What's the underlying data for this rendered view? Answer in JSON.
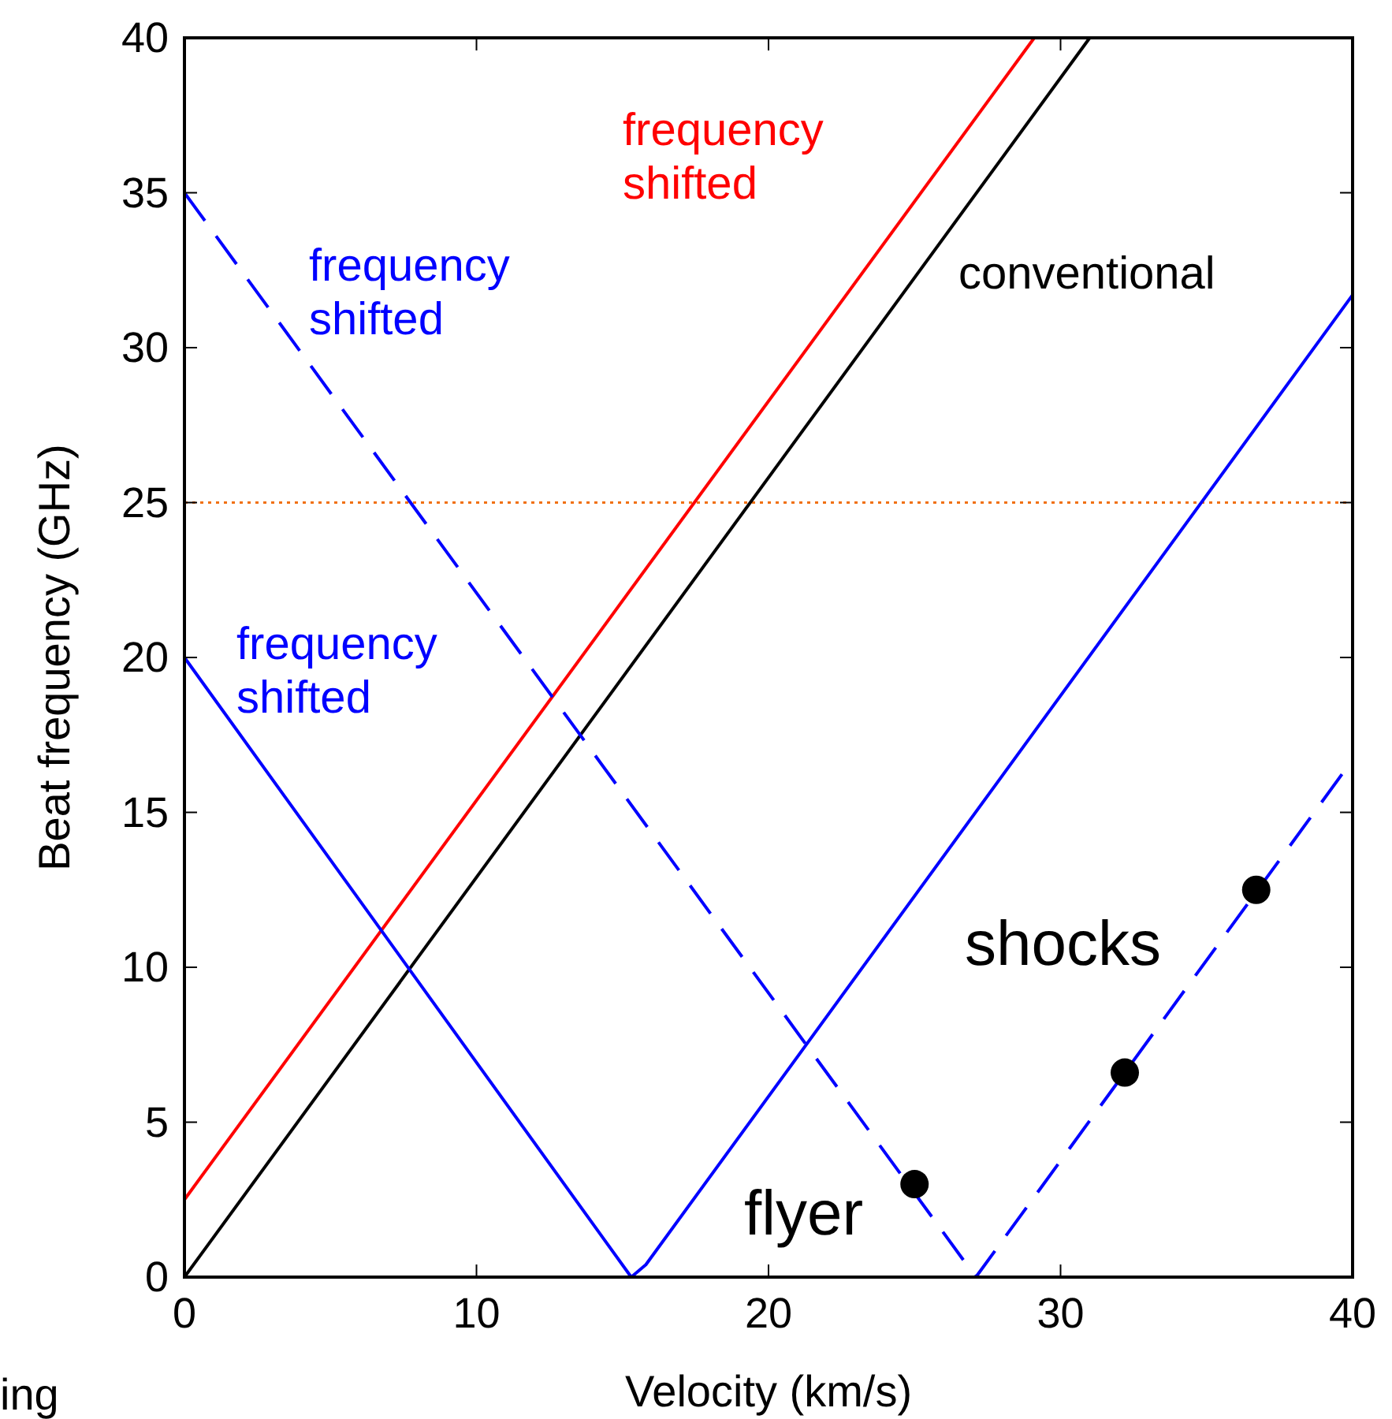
{
  "chart_data": {
    "type": "line",
    "xlabel": "Velocity (km/s)",
    "ylabel": "Beat frequency (GHz)",
    "xlim": [
      0,
      40
    ],
    "ylim": [
      0,
      40
    ],
    "xticks": [
      0,
      10,
      20,
      30,
      40
    ],
    "yticks": [
      0,
      5,
      10,
      15,
      20,
      25,
      30,
      35,
      40
    ],
    "grid": false,
    "series": [
      {
        "name": "frequency shifted",
        "color": "#ff0000",
        "x": [
          0,
          29.1
        ],
        "values": [
          2.5,
          40
        ],
        "line_style": "solid"
      },
      {
        "name": "conventional",
        "color": "#000000",
        "x": [
          0,
          31
        ],
        "values": [
          0,
          40
        ],
        "line_style": "solid"
      },
      {
        "name": "frequency shifted",
        "color": "#0000ff",
        "x": [
          0,
          15.3,
          15.8,
          40
        ],
        "values": [
          20,
          0,
          0.4,
          31.7
        ],
        "line_style": "solid"
      },
      {
        "name": "frequency shifted",
        "color": "#0000ff",
        "x": [
          0,
          27.1,
          40
        ],
        "values": [
          35,
          0,
          16.7
        ],
        "line_style": "dashed"
      },
      {
        "type": "scatter",
        "color": "#000000",
        "x": [
          25,
          32.2,
          36.7
        ],
        "values": [
          3,
          6.6,
          12.5
        ],
        "marker": "circle"
      }
    ],
    "ref_lines": [
      {
        "axis": "y",
        "value": 25,
        "color": "#f07010",
        "line_style": "dotted"
      }
    ],
    "annotations": [
      "shocks",
      "flyer",
      "ing"
    ]
  }
}
